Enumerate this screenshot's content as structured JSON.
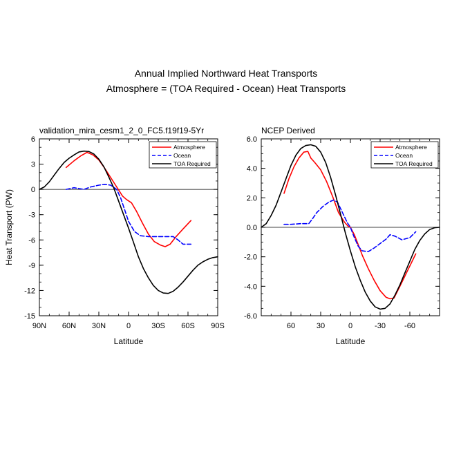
{
  "page": {
    "title_line1": "Annual Implied Northward Heat Transports",
    "title_line2": "Atmosphere = (TOA Required - Ocean) Heat Transports"
  },
  "chart_data": [
    {
      "type": "line",
      "title": "validation_mira_cesm1_2_0_FC5.f19f19-5Yr",
      "xlabel": "Latitude",
      "ylabel": "Heat Transport (PW)",
      "xlim": [
        90,
        -90
      ],
      "ylim": [
        -15,
        6
      ],
      "x_ticks": [
        {
          "v": 90,
          "label": "90N"
        },
        {
          "v": 60,
          "label": "60N"
        },
        {
          "v": 30,
          "label": "30N"
        },
        {
          "v": 0,
          "label": "0"
        },
        {
          "v": -30,
          "label": "30S"
        },
        {
          "v": -60,
          "label": "60S"
        },
        {
          "v": -90,
          "label": "90S"
        }
      ],
      "y_ticks": [
        {
          "v": 6,
          "label": "6"
        },
        {
          "v": 3,
          "label": "3"
        },
        {
          "v": 0,
          "label": "0"
        },
        {
          "v": -3,
          "label": "-3"
        },
        {
          "v": -6,
          "label": "-6"
        },
        {
          "v": -9,
          "label": "-9"
        },
        {
          "v": -12,
          "label": "-12"
        },
        {
          "v": -15,
          "label": "-15"
        }
      ],
      "zero_line": true,
      "legend_position": "top-right",
      "series": [
        {
          "name": "Atmosphere",
          "color": "#ff0000",
          "dash": "solid",
          "x": [
            63,
            55,
            48,
            42,
            36,
            30,
            24,
            18,
            12,
            6,
            2,
            -3,
            -8,
            -14,
            -20,
            -26,
            -32,
            -37,
            -42,
            -48,
            -55,
            -63
          ],
          "y": [
            2.6,
            3.4,
            4.0,
            4.4,
            4.1,
            3.5,
            2.5,
            1.4,
            0.3,
            -0.8,
            -1.2,
            -1.6,
            -2.6,
            -4.0,
            -5.3,
            -6.2,
            -6.6,
            -6.8,
            -6.5,
            -5.6,
            -4.7,
            -3.7
          ]
        },
        {
          "name": "Ocean",
          "color": "#0000ff",
          "dash": "dashed",
          "x": [
            63,
            55,
            45,
            38,
            30,
            24,
            18,
            12,
            8,
            4,
            0,
            -6,
            -12,
            -20,
            -30,
            -40,
            -45,
            -50,
            -55,
            -63
          ],
          "y": [
            0.0,
            0.2,
            0.0,
            0.3,
            0.5,
            0.6,
            0.5,
            0.0,
            -1.0,
            -2.4,
            -3.8,
            -5.0,
            -5.5,
            -5.6,
            -5.6,
            -5.6,
            -5.6,
            -6.0,
            -6.5,
            -6.5
          ]
        },
        {
          "name": "TOA Required",
          "color": "#000000",
          "dash": "solid",
          "x": [
            90,
            85,
            80,
            75,
            70,
            65,
            60,
            55,
            50,
            45,
            40,
            35,
            30,
            25,
            20,
            15,
            10,
            5,
            0,
            -5,
            -10,
            -15,
            -20,
            -25,
            -30,
            -35,
            -40,
            -45,
            -50,
            -55,
            -60,
            -65,
            -70,
            -75,
            -80,
            -85,
            -90
          ],
          "y": [
            0.0,
            0.3,
            0.9,
            1.7,
            2.5,
            3.2,
            3.7,
            4.1,
            4.45,
            4.55,
            4.5,
            4.2,
            3.6,
            2.7,
            1.5,
            0.2,
            -1.4,
            -3.0,
            -4.6,
            -6.3,
            -8.0,
            -9.4,
            -10.5,
            -11.4,
            -12.0,
            -12.3,
            -12.35,
            -12.1,
            -11.6,
            -11.0,
            -10.3,
            -9.6,
            -9.0,
            -8.6,
            -8.3,
            -8.1,
            -8.0
          ]
        }
      ]
    },
    {
      "type": "line",
      "title": "NCEP Derived",
      "xlabel": "Latitude",
      "ylabel": "",
      "xlim": [
        90,
        -90
      ],
      "ylim": [
        -6,
        6
      ],
      "x_ticks": [
        {
          "v": 60,
          "label": "60"
        },
        {
          "v": 30,
          "label": "30"
        },
        {
          "v": 0,
          "label": "0"
        },
        {
          "v": -30,
          "label": "-30"
        },
        {
          "v": -60,
          "label": "-60"
        }
      ],
      "y_ticks": [
        {
          "v": 6,
          "label": "6.0"
        },
        {
          "v": 4,
          "label": "4.0"
        },
        {
          "v": 2,
          "label": "2.0"
        },
        {
          "v": 0,
          "label": "0.0"
        },
        {
          "v": -2,
          "label": "-2.0"
        },
        {
          "v": -4,
          "label": "-4.0"
        },
        {
          "v": -6,
          "label": "-6.0"
        }
      ],
      "zero_line": true,
      "legend_position": "top-right",
      "series": [
        {
          "name": "Atmosphere",
          "color": "#ff0000",
          "dash": "solid",
          "x": [
            67,
            62,
            57,
            52,
            47,
            43,
            40,
            36,
            30,
            24,
            18,
            12,
            6,
            2,
            0,
            -4,
            -8,
            -12,
            -18,
            -24,
            -30,
            -36,
            -40,
            -44,
            -50,
            -58,
            -66
          ],
          "y": [
            2.3,
            3.3,
            4.1,
            4.7,
            5.1,
            5.15,
            4.7,
            4.4,
            3.9,
            3.1,
            2.1,
            1.0,
            0.35,
            0.05,
            0.0,
            -0.5,
            -1.2,
            -1.9,
            -2.8,
            -3.6,
            -4.3,
            -4.75,
            -4.85,
            -4.8,
            -4.0,
            -2.9,
            -1.8
          ]
        },
        {
          "name": "Ocean",
          "color": "#0000ff",
          "dash": "dashed",
          "x": [
            67,
            60,
            50,
            42,
            38,
            34,
            28,
            22,
            17,
            13,
            8,
            3,
            0,
            -4,
            -8,
            -12,
            -18,
            -24,
            -30,
            -36,
            -40,
            -45,
            -52,
            -60,
            -66
          ],
          "y": [
            0.2,
            0.2,
            0.25,
            0.25,
            0.6,
            1.0,
            1.4,
            1.7,
            1.85,
            1.7,
            1.0,
            0.3,
            0.0,
            -0.7,
            -1.3,
            -1.6,
            -1.65,
            -1.4,
            -1.1,
            -0.8,
            -0.5,
            -0.6,
            -0.85,
            -0.7,
            -0.3
          ]
        },
        {
          "name": "TOA Required",
          "color": "#000000",
          "dash": "solid",
          "x": [
            90,
            85,
            80,
            75,
            70,
            65,
            60,
            55,
            50,
            45,
            40,
            35,
            30,
            25,
            20,
            15,
            10,
            5,
            0,
            -5,
            -10,
            -15,
            -20,
            -25,
            -30,
            -35,
            -40,
            -45,
            -50,
            -55,
            -60,
            -65,
            -70,
            -75,
            -80,
            -85,
            -90
          ],
          "y": [
            0.0,
            0.25,
            0.8,
            1.5,
            2.4,
            3.3,
            4.2,
            4.9,
            5.35,
            5.55,
            5.6,
            5.5,
            5.1,
            4.4,
            3.4,
            2.2,
            0.9,
            -0.4,
            -1.6,
            -2.7,
            -3.6,
            -4.4,
            -5.0,
            -5.4,
            -5.55,
            -5.5,
            -5.2,
            -4.6,
            -3.9,
            -3.1,
            -2.3,
            -1.5,
            -0.9,
            -0.45,
            -0.15,
            -0.03,
            0.0
          ]
        }
      ]
    }
  ]
}
